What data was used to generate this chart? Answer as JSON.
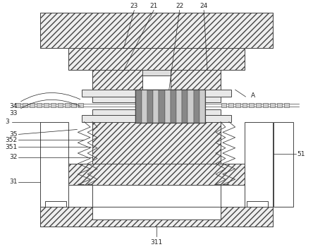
{
  "bg_color": "#ffffff",
  "lc": "#444444",
  "lw": 0.7,
  "fig_width": 4.44,
  "fig_height": 3.5,
  "dpi": 100,
  "hatch_color": "#444444",
  "label_fs": 6.5,
  "label_color": "#222222"
}
